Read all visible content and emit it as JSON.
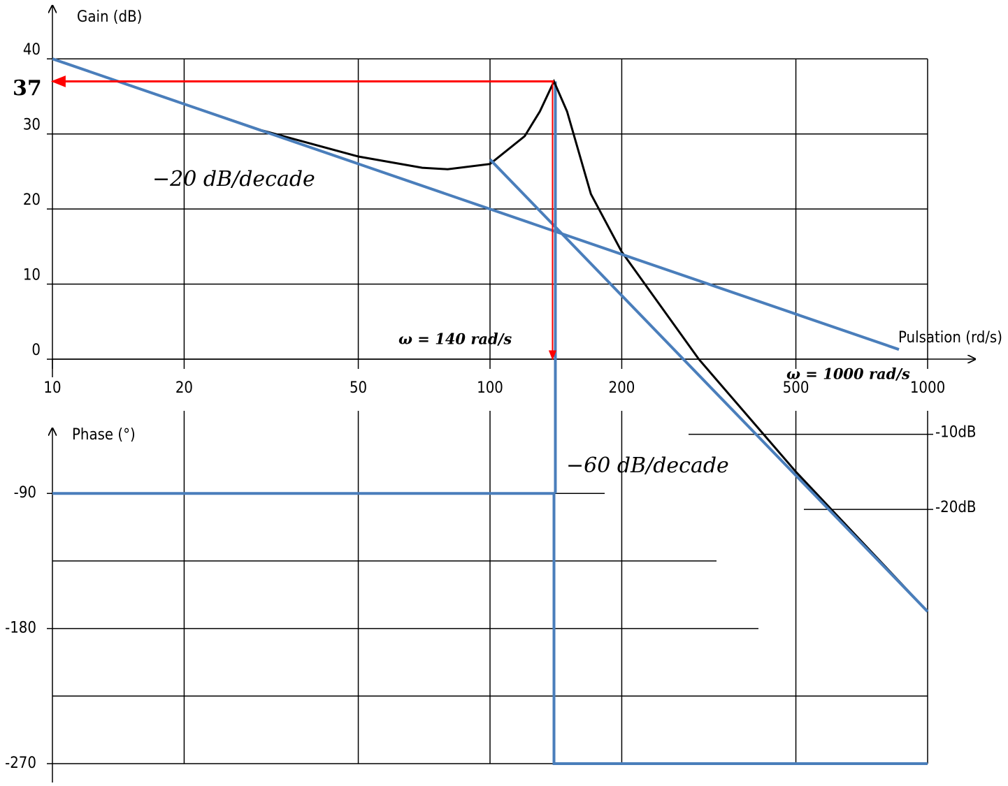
{
  "chart_data": [
    {
      "type": "line",
      "y_label": "Gain (dB)",
      "x_label": "Pulsation (rd/s)",
      "log_x": true,
      "xlim": [
        10,
        1000
      ],
      "xticks": [
        10,
        20,
        50,
        100,
        200,
        500,
        1000
      ],
      "ylim": [
        -54,
        47
      ],
      "yticks": [
        0,
        10,
        20,
        30,
        40
      ],
      "yticks_right": [
        {
          "value": -10,
          "label": "-10dB"
        },
        {
          "value": -20,
          "label": "-20dB"
        }
      ],
      "grid": true,
      "series": [
        {
          "color": "#000000",
          "x": [
            10,
            20,
            30,
            50,
            70,
            80,
            100,
            120,
            130,
            140,
            150,
            170,
            200,
            300,
            500,
            1000
          ],
          "values": [
            40,
            34,
            30.5,
            27,
            25.5,
            25.3,
            26,
            29.7,
            33,
            37,
            33,
            22,
            14.3,
            0,
            -15,
            -33.6
          ]
        },
        {
          "color": "#4a7ebb",
          "x": [
            10,
            860
          ],
          "values": [
            40,
            1.3
          ]
        },
        {
          "color": "#4a7ebb",
          "x": [
            100,
            1000
          ],
          "values": [
            26.6,
            -33.6
          ]
        }
      ],
      "peak": {
        "x": 140,
        "value": 37,
        "x_label": "ω = 140 rad/s",
        "color": "#ff0000"
      },
      "annotations": [
        "−20 dB/decade",
        "−60 dB/decade",
        "ω = 1000 rad/s"
      ]
    },
    {
      "type": "line",
      "y_label": "Phase (°)",
      "log_x": true,
      "xlim": [
        10,
        1000
      ],
      "xticks": [
        20,
        50,
        100,
        200,
        500,
        1000
      ],
      "ylim": [
        -270,
        -48
      ],
      "yticks": [
        -90,
        -180,
        -270
      ],
      "minor_grid": [
        -135,
        -225
      ],
      "series": [
        {
          "color": "#4a7ebb",
          "x": [
            10,
            140,
            140,
            1000
          ],
          "values": [
            -90,
            -90,
            -270,
            -270
          ]
        }
      ]
    }
  ]
}
